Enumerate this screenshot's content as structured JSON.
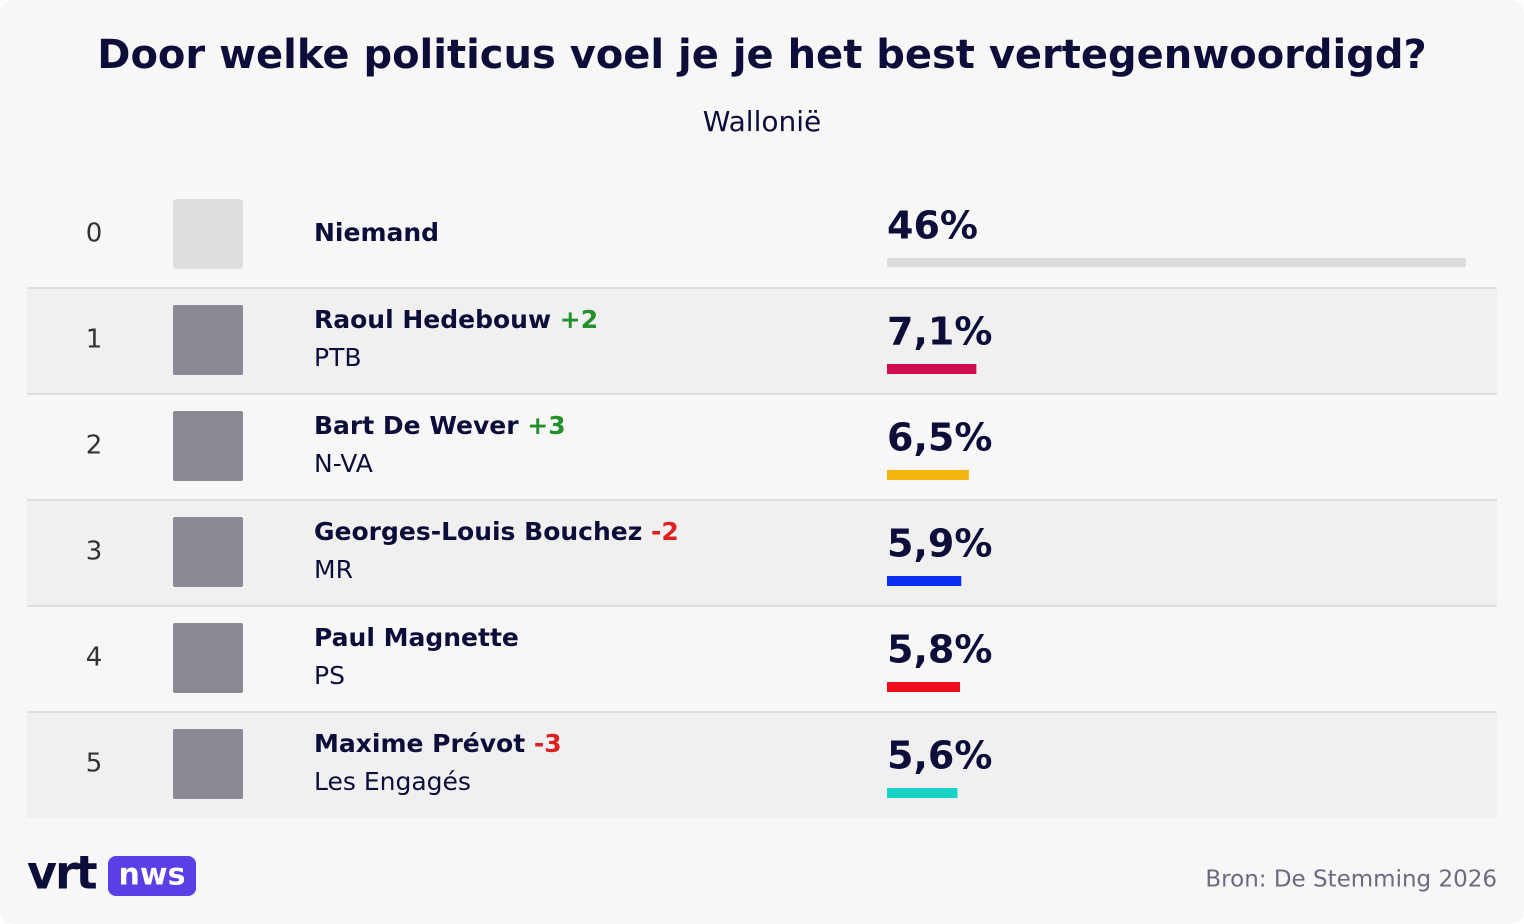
{
  "chart_data": {
    "type": "bar",
    "title": "Door welke politicus voel je je het best vertegenwoordigd?",
    "subtitle": "Wallonië",
    "ranks": [
      0,
      1,
      2,
      3,
      4,
      5
    ],
    "categories": [
      "Niemand",
      "Raoul Hedebouw",
      "Bart De Wever",
      "Georges-Louis Bouchez",
      "Paul Magnette",
      "Maxime Prévot"
    ],
    "changes": [
      null,
      "+2",
      "+3",
      "-2",
      null,
      "-3"
    ],
    "change_colors": [
      null,
      "#23912b",
      "#23912b",
      "#e02020",
      null,
      "#e02020"
    ],
    "parties": [
      null,
      "PTB",
      "N-VA",
      "MR",
      "PS",
      "Les Engagés"
    ],
    "values": [
      46,
      7.1,
      6.5,
      5.9,
      5.8,
      5.6
    ],
    "value_labels": [
      "46%",
      "7,1%",
      "6,5%",
      "5,9%",
      "5,8%",
      "5,6%"
    ],
    "colors": [
      "#dcdcdc",
      "#d10f4f",
      "#f4b50f",
      "#0a2ff0",
      "#ee0f1c",
      "#18d3c6"
    ],
    "xlim": [
      0,
      46
    ],
    "logo": [
      "vrt",
      "nws"
    ],
    "source": "Bron: De Stemming 2026"
  }
}
